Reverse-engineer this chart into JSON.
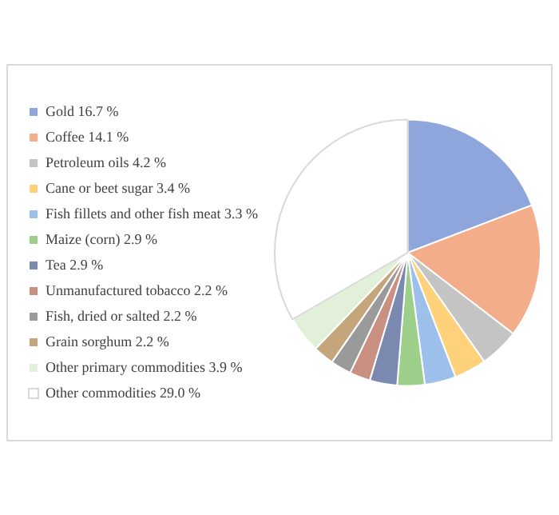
{
  "chart_data": {
    "type": "pie",
    "categories": [
      "Gold",
      "Coffee",
      "Petroleum oils",
      "Cane or beet sugar",
      "Fish fillets and other fish meat",
      "Maize (corn)",
      "Tea",
      "Unmanufactured tobacco",
      "Fish, dried or salted",
      "Grain sorghum",
      "Other primary commodities",
      "Other commodities"
    ],
    "values": [
      16.7,
      14.1,
      4.2,
      3.4,
      3.3,
      2.9,
      2.9,
      2.2,
      2.2,
      2.2,
      3.9,
      29.0
    ],
    "value_labels": [
      "16.7 %",
      "14.1 %",
      "4.2 %",
      "3.4 %",
      "3.3 %",
      "2.9 %",
      "2.9 %",
      "2.2 %",
      "2.2 %",
      "2.2 %",
      "3.9 %",
      "29.0 %"
    ],
    "colors": [
      "#8fa6dc",
      "#f4ad8a",
      "#c4c4c4",
      "#fdd27a",
      "#9dc0ea",
      "#9ccf8a",
      "#7b88b0",
      "#c98f80",
      "#9a9a9a",
      "#c5a67c",
      "#e2efd9",
      "#ffffff"
    ],
    "legend": "left"
  }
}
